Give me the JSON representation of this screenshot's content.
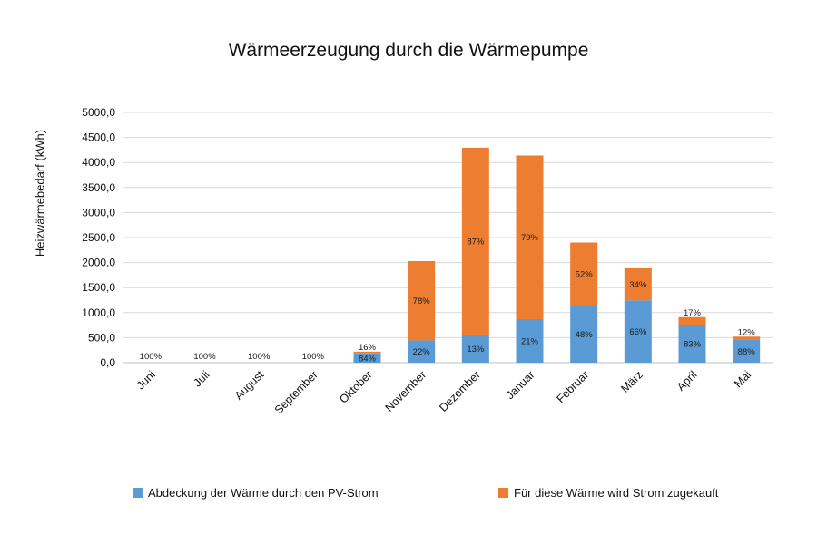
{
  "chart_data": {
    "type": "bar",
    "stacked": true,
    "title": "Wärmeerzeugung durch die Wärmepumpe",
    "xlabel": "",
    "ylabel": "Heizwärmebedarf (kWh)",
    "ylim": [
      0,
      5000
    ],
    "y_ticks": [
      "0,0",
      "500,0",
      "1000,0",
      "1500,0",
      "2000,0",
      "2500,0",
      "3000,0",
      "3500,0",
      "4000,0",
      "4500,0",
      "5000,0"
    ],
    "grid": true,
    "legend_position": "bottom",
    "categories": [
      "Juni",
      "Juli",
      "August",
      "September",
      "Oktober",
      "November",
      "Dezember",
      "Januar",
      "Februar",
      "März",
      "April",
      "Mai"
    ],
    "series": [
      {
        "name": "Abdeckung der Wärme durch den PV-Strom",
        "color": "#5b9bd5",
        "values": [
          0,
          0,
          0,
          0,
          185,
          445,
          560,
          870,
          1150,
          1245,
          755,
          455
        ],
        "labels": [
          "100%",
          "100%",
          "100%",
          "100%",
          "84%",
          "22%",
          "13%",
          "21%",
          "48%",
          "66%",
          "83%",
          "88%"
        ]
      },
      {
        "name": "Für diese Wärme wird Strom zugekauft",
        "color": "#ed7d31",
        "values": [
          0,
          0,
          0,
          0,
          35,
          1585,
          3735,
          3270,
          1250,
          640,
          155,
          65
        ],
        "labels": [
          "",
          "",
          "",
          "",
          "16%",
          "78%",
          "87%",
          "79%",
          "52%",
          "34%",
          "17%",
          "12%"
        ]
      }
    ]
  }
}
